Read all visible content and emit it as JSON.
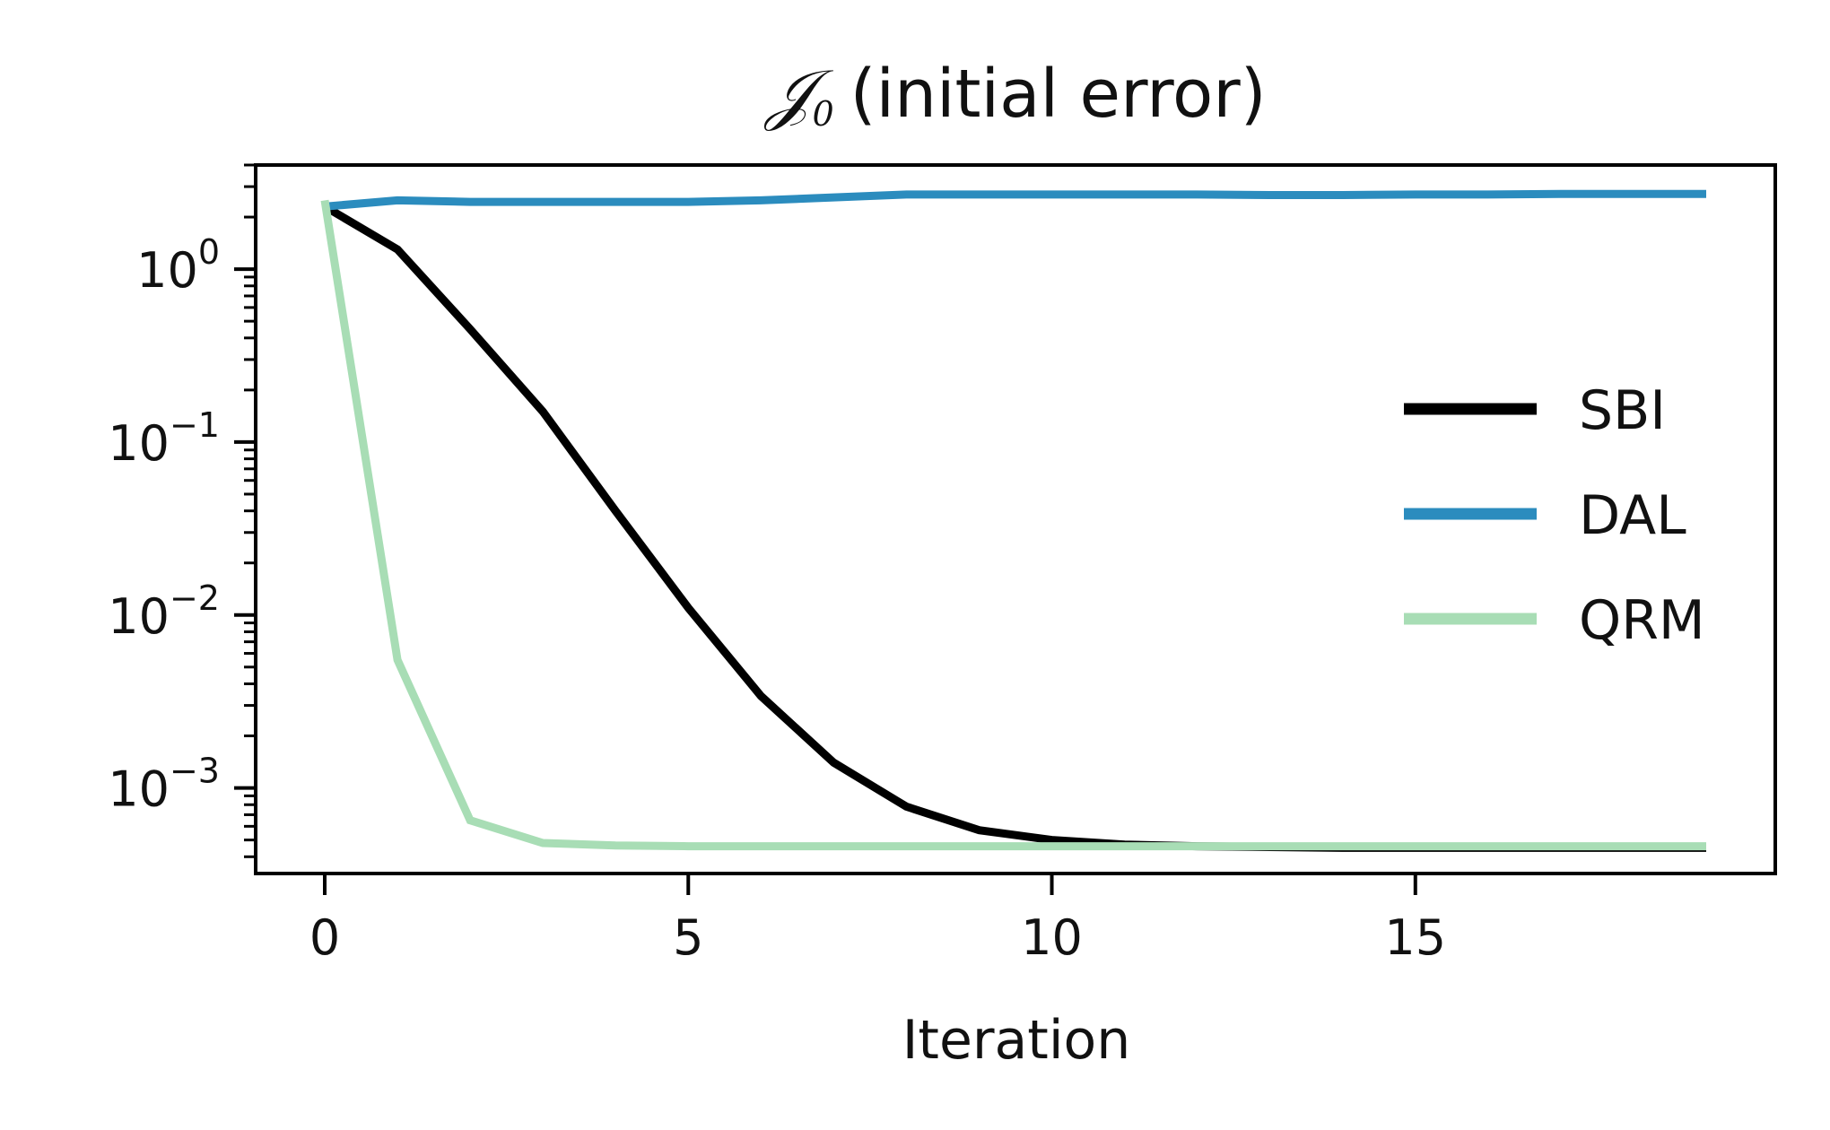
{
  "chart_data": {
    "type": "line",
    "title": "𝒥₀ (initial error)",
    "title_math": "𝒥",
    "title_sub": "0",
    "title_text": "(initial error)",
    "xlabel": "Iteration",
    "ylabel": "",
    "xlim": [
      -0.95,
      19.95
    ],
    "ylim": [
      0.00032,
      4.0
    ],
    "yscale": "log",
    "grid": false,
    "legend_position": "right",
    "x_ticks": [
      {
        "value": 0,
        "label": "0"
      },
      {
        "value": 5,
        "label": "5"
      },
      {
        "value": 10,
        "label": "10"
      },
      {
        "value": 15,
        "label": "15"
      }
    ],
    "y_ticks": [
      {
        "value": 1,
        "base": "10",
        "exp": "0"
      },
      {
        "value": 0.1,
        "base": "10",
        "exp": "−1"
      },
      {
        "value": 0.01,
        "base": "10",
        "exp": "−2"
      },
      {
        "value": 0.001,
        "base": "10",
        "exp": "−3"
      }
    ],
    "x": [
      0,
      1,
      2,
      3,
      4,
      5,
      6,
      7,
      8,
      9,
      10,
      11,
      12,
      13,
      14,
      15,
      16,
      17,
      18,
      19
    ],
    "series": [
      {
        "name": "SBI",
        "color": "#000000",
        "width": 9,
        "values": [
          2.3,
          1.3,
          0.45,
          0.15,
          0.04,
          0.011,
          0.0034,
          0.0014,
          0.00078,
          0.00057,
          0.0005,
          0.00047,
          0.00046,
          0.000455,
          0.00045,
          0.00045,
          0.00045,
          0.00045,
          0.00045,
          0.00045
        ]
      },
      {
        "name": "DAL",
        "color": "#2b8cbe",
        "width": 9,
        "values": [
          2.3,
          2.5,
          2.45,
          2.45,
          2.45,
          2.45,
          2.5,
          2.6,
          2.7,
          2.7,
          2.7,
          2.7,
          2.7,
          2.68,
          2.68,
          2.7,
          2.7,
          2.72,
          2.72,
          2.72
        ]
      },
      {
        "name": "QRM",
        "color": "#a8ddb5",
        "width": 9,
        "values": [
          2.5,
          0.0055,
          0.00065,
          0.00048,
          0.000465,
          0.00046,
          0.00046,
          0.00046,
          0.00046,
          0.00046,
          0.00046,
          0.00046,
          0.00046,
          0.00046,
          0.00046,
          0.00046,
          0.00046,
          0.00046,
          0.00046,
          0.00046
        ]
      }
    ]
  }
}
